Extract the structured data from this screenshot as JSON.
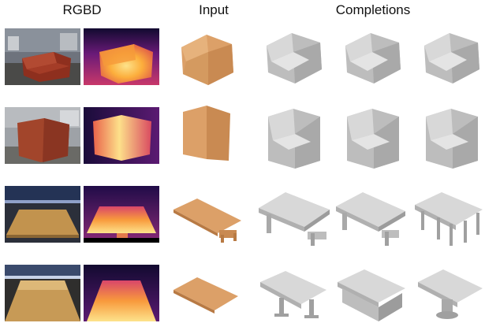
{
  "headers": {
    "rgbd": "RGBD",
    "input": "Input",
    "completions": "Completions"
  },
  "rows": [
    {
      "object": "chair",
      "view": "front",
      "rgb_colors": {
        "wall": "#7f8590",
        "floor": "#4a4a48",
        "object": "#9c3a26"
      }
    },
    {
      "object": "chair",
      "view": "back",
      "rgb_colors": {
        "wall": "#a9acb0",
        "floor": "#6a6a66",
        "object": "#a2452b"
      }
    },
    {
      "object": "table",
      "view": "long",
      "rgb_colors": {
        "wall": "#243355",
        "floor": "#3c3a38",
        "object": "#c2934e"
      }
    },
    {
      "object": "table",
      "view": "long-close",
      "rgb_colors": {
        "wall": "#3a4a6c",
        "floor": "#2f2e2d",
        "object": "#c79a56"
      }
    }
  ],
  "colors": {
    "input_points": "#dca068",
    "completion_mesh": "#cfcfcf",
    "depth_far": "#3b0f70",
    "depth_mid": "#d7456a",
    "depth_near": "#fcb03c"
  }
}
